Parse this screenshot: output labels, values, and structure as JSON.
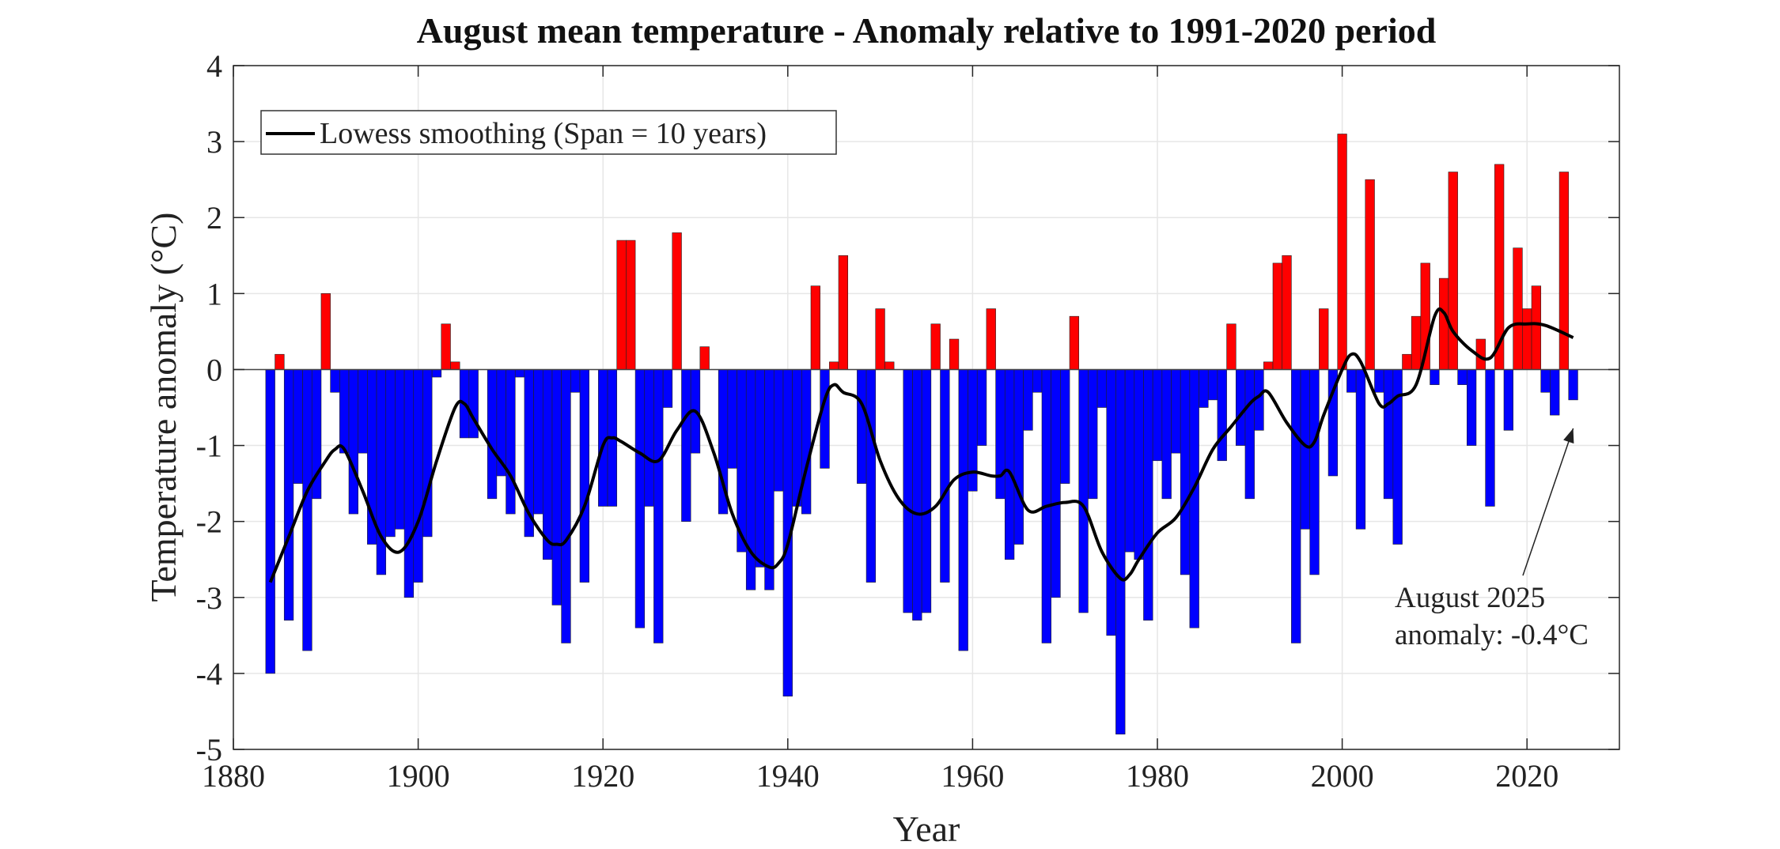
{
  "chart_data": {
    "type": "bar",
    "title": "August mean temperature - Anomaly relative to 1991-2020 period",
    "xlabel": "Year",
    "ylabel": "Temperature anomaly (°C)",
    "xlim": [
      1880,
      2030
    ],
    "ylim": [
      -5,
      4
    ],
    "xticks": [
      1880,
      1900,
      1920,
      1940,
      1960,
      1980,
      2000,
      2020
    ],
    "yticks": [
      -5,
      -4,
      -3,
      -2,
      -1,
      0,
      1,
      2,
      3,
      4
    ],
    "grid": true,
    "legend": {
      "position": "top-left",
      "label": "Lowess smoothing (Span = 10 years)"
    },
    "colors": {
      "positive": "#ff0000",
      "negative": "#0000ff",
      "smooth": "#000000",
      "grid": "#e6e6e6"
    },
    "x_start_year": 1884,
    "values": [
      -4.0,
      0.2,
      -3.3,
      -1.5,
      -3.7,
      -1.7,
      1.0,
      -0.3,
      -1.1,
      -1.9,
      -1.1,
      -2.3,
      -2.7,
      -2.2,
      -2.1,
      -3.0,
      -2.8,
      -2.2,
      -0.1,
      0.6,
      0.1,
      -0.9,
      -0.9,
      0.0,
      -1.7,
      -1.4,
      -1.9,
      -0.1,
      -2.2,
      -1.9,
      -2.5,
      -3.1,
      -3.6,
      -0.3,
      -2.8,
      0.0,
      -1.8,
      -1.8,
      1.7,
      1.7,
      -3.4,
      -1.8,
      -3.6,
      -0.5,
      1.8,
      -2.0,
      -1.1,
      0.3,
      0.0,
      -1.9,
      -1.3,
      -2.4,
      -2.9,
      -2.6,
      -2.9,
      -1.6,
      -4.3,
      -1.8,
      -1.9,
      1.1,
      -1.3,
      0.1,
      1.5,
      0.0,
      -1.5,
      -2.8,
      0.8,
      0.1,
      0.0,
      -3.2,
      -3.3,
      -3.2,
      0.6,
      -2.8,
      0.4,
      -3.7,
      -1.6,
      -1.0,
      0.8,
      -1.7,
      -2.5,
      -2.3,
      -0.8,
      -0.3,
      -3.6,
      -3.0,
      -1.5,
      0.7,
      -3.2,
      -1.7,
      -0.5,
      -3.5,
      -4.8,
      -2.4,
      -2.5,
      -3.3,
      -1.2,
      -1.7,
      -1.1,
      -2.7,
      -3.4,
      -0.5,
      -0.4,
      -1.2,
      0.6,
      -1.0,
      -1.7,
      -0.8,
      0.1,
      1.4,
      1.5,
      -3.6,
      -2.1,
      -2.7,
      0.8,
      -1.4,
      3.1,
      -0.3,
      -2.1,
      2.5,
      -0.3,
      -1.7,
      -2.3,
      0.2,
      0.7,
      1.4,
      -0.2,
      1.2,
      2.6,
      -0.2,
      -1.0,
      0.4,
      -1.8,
      2.7,
      -0.8,
      1.6,
      0.8,
      1.1,
      -0.3,
      -0.6,
      2.6,
      -0.4
    ],
    "smoothing": {
      "x": [
        1884,
        1886,
        1888,
        1890,
        1891,
        1892,
        1894,
        1896,
        1898,
        1900,
        1902,
        1904,
        1905,
        1906,
        1908,
        1910,
        1912,
        1914,
        1915,
        1916,
        1918,
        1920,
        1921,
        1922,
        1924,
        1926,
        1928,
        1930,
        1932,
        1934,
        1936,
        1938,
        1939,
        1940,
        1942,
        1944,
        1945,
        1946,
        1948,
        1950,
        1952,
        1954,
        1956,
        1958,
        1960,
        1962,
        1963,
        1964,
        1966,
        1968,
        1970,
        1972,
        1974,
        1976,
        1977,
        1978,
        1980,
        1982,
        1984,
        1986,
        1988,
        1990,
        1991,
        1992,
        1994,
        1996,
        1997,
        1998,
        2000,
        2001,
        2002,
        2004,
        2005,
        2006,
        2008,
        2010,
        2011,
        2012,
        2014,
        2016,
        2018,
        2020,
        2022,
        2025
      ],
      "y": [
        -2.8,
        -2.2,
        -1.6,
        -1.2,
        -1.05,
        -1.05,
        -1.6,
        -2.2,
        -2.4,
        -2.0,
        -1.2,
        -0.5,
        -0.45,
        -0.65,
        -1.05,
        -1.4,
        -1.9,
        -2.25,
        -2.3,
        -2.25,
        -1.8,
        -1.0,
        -0.9,
        -0.95,
        -1.1,
        -1.2,
        -0.8,
        -0.55,
        -1.1,
        -1.9,
        -2.4,
        -2.6,
        -2.55,
        -2.3,
        -1.3,
        -0.4,
        -0.2,
        -0.3,
        -0.45,
        -1.2,
        -1.7,
        -1.9,
        -1.8,
        -1.45,
        -1.35,
        -1.4,
        -1.4,
        -1.35,
        -1.85,
        -1.8,
        -1.75,
        -1.8,
        -2.4,
        -2.75,
        -2.7,
        -2.5,
        -2.15,
        -1.95,
        -1.55,
        -1.05,
        -0.75,
        -0.45,
        -0.35,
        -0.3,
        -0.7,
        -1.0,
        -0.95,
        -0.6,
        0.0,
        0.2,
        0.1,
        -0.45,
        -0.45,
        -0.35,
        -0.2,
        0.7,
        0.75,
        0.5,
        0.25,
        0.15,
        0.55,
        0.6,
        0.58,
        0.42
      ]
    },
    "annotation": {
      "line1": "August 2025",
      "line2": "anomaly: -0.4°C",
      "year": 2025,
      "value": -0.4
    }
  }
}
